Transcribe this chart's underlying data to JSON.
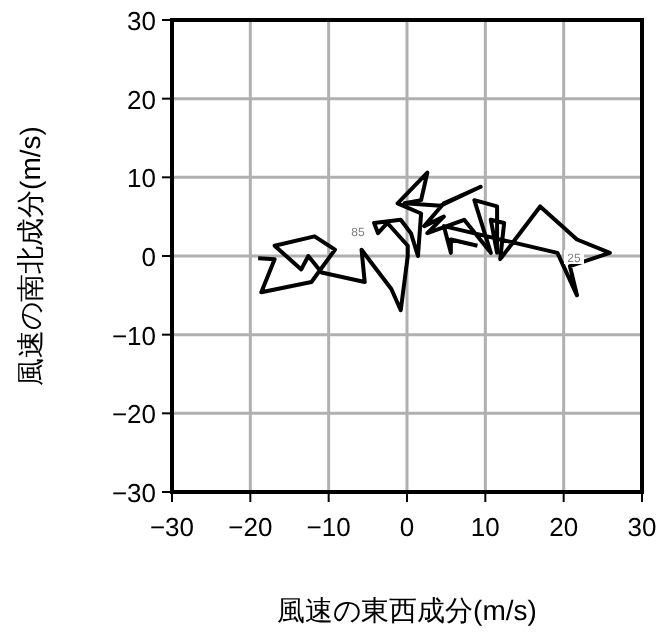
{
  "chart_data": {
    "type": "line",
    "xlabel": "風速の東西成分(m/s)",
    "ylabel": "風速の南北成分(m/s)",
    "color": "#000000",
    "grid": true,
    "xlim": [
      -30,
      30
    ],
    "ylim": [
      -30,
      30
    ],
    "xticks": [
      {
        "value": -30,
        "label": "−30"
      },
      {
        "value": -20,
        "label": "−20"
      },
      {
        "value": -10,
        "label": "−10"
      },
      0,
      10,
      20,
      30
    ],
    "yticks": [
      {
        "value": -30,
        "label": "−30"
      },
      {
        "value": -20,
        "label": "−20"
      },
      {
        "value": -10,
        "label": "−10"
      },
      0,
      10,
      20,
      30
    ],
    "x": [
      -19.0,
      -16.9,
      -18.6,
      -12.2,
      -9.2,
      -11.8,
      -16.9,
      -13.5,
      -12.6,
      -10.9,
      -5.4,
      -5.8,
      -4.6,
      -2.0,
      -0.8,
      0.1,
      0.1,
      -2.5,
      -3.7,
      -4.2,
      -0.8,
      0.5,
      1.4,
      1.8,
      -1.2,
      2.6,
      1.8,
      -0.3,
      4.3,
      9.4,
      4.7,
      2.2,
      4.7,
      2.6,
      7.3,
      10.7,
      8.6,
      11.5,
      11.5,
      10.7,
      12.4,
      11.9,
      17.0,
      21.7,
      25.9,
      20.8,
      21.7,
      19.2,
      4.7,
      5.6,
      5.6,
      9.0
    ],
    "values": [
      -0.3,
      -0.4,
      -4.6,
      -3.3,
      0.8,
      2.5,
      1.3,
      -1.7,
      0,
      -2.1,
      -3.3,
      0.8,
      -0.8,
      -4.2,
      -6.9,
      0,
      1.3,
      4.2,
      2.9,
      4.2,
      4.6,
      2.9,
      0,
      5.4,
      6.7,
      10.6,
      7.1,
      6.7,
      6.4,
      8.8,
      6.7,
      3.8,
      5.0,
      2.9,
      4.6,
      0.4,
      7.1,
      6.3,
      0.4,
      4.6,
      4.2,
      -0.4,
      6.3,
      2.1,
      0.4,
      -1.3,
      -5.0,
      0.4,
      3.8,
      0.4,
      2.1,
      1.3
    ],
    "annotations": [
      "85",
      "25"
    ]
  }
}
